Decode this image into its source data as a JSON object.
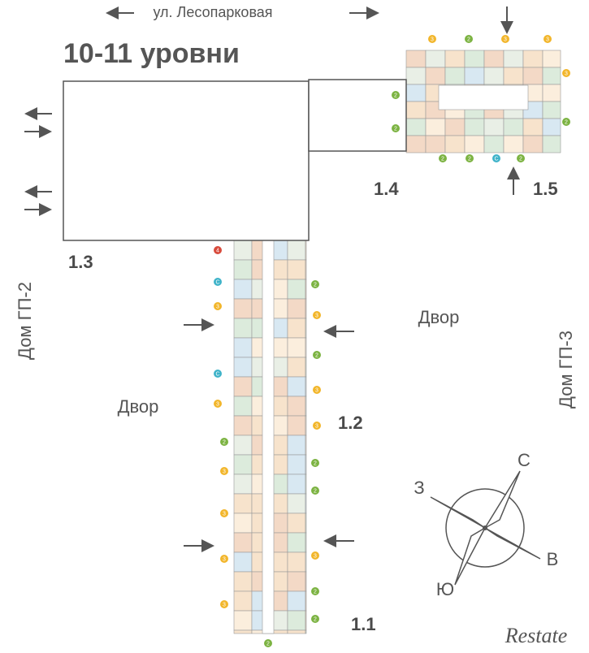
{
  "header": {
    "street": "ул. Лесопарковая",
    "title": "10-11 уровни"
  },
  "sections": [
    "1.1",
    "1.2",
    "1.3",
    "1.4",
    "1.5"
  ],
  "courtyards": [
    "Двор",
    "Двор"
  ],
  "neighbors": [
    "Дом ГП-2",
    "Дом ГП-3"
  ],
  "compass": {
    "north": "С",
    "west": "З",
    "east": "В",
    "south": "Ю"
  },
  "watermark": "Restate",
  "units": [
    "3",
    "2",
    "3",
    "3",
    "3",
    "2",
    "2",
    "2",
    "2",
    "2",
    "С",
    "2",
    "4",
    "С",
    "3",
    "С",
    "3",
    "2",
    "3",
    "3",
    "3",
    "3",
    "2",
    "3",
    "2",
    "3",
    "3",
    "2",
    "2",
    "3",
    "2",
    "2",
    "2"
  ]
}
